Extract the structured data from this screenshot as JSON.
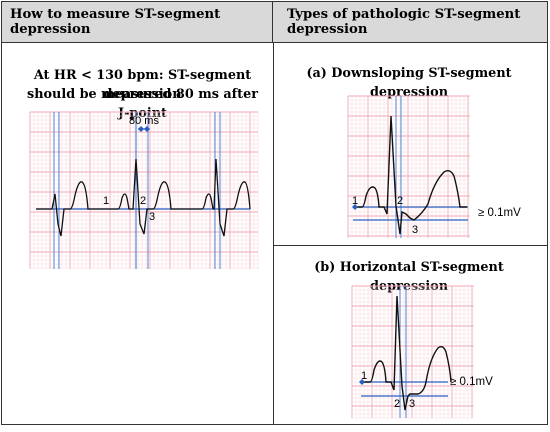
{
  "table": {
    "header_left": "How to measure ST-segment depression",
    "header_right": "Types of pathologic ST-segment depression"
  },
  "left_panel": {
    "caption_line1": "At HR < 130 bpm: ST-segment depression",
    "caption_line2": "should be measured 80 ms after J-point",
    "interval_label": "80 ms",
    "point_labels": [
      "1",
      "2",
      "3"
    ]
  },
  "panel_a": {
    "title": "(a) Downsloping ST-segment depression",
    "threshold_label": "≥ 0.1mV",
    "point_labels": [
      "1",
      "2",
      "3"
    ]
  },
  "panel_b": {
    "title": "(b) Horizontal ST-segment depression",
    "threshold_label": "≥ 0.1mV",
    "point_labels": [
      "1",
      "2",
      "3"
    ]
  },
  "colors": {
    "grid_minor": "#f7d6dc",
    "grid_major": "#eeaab5",
    "marker_line": "#4f86d6",
    "trace": "#111111"
  }
}
